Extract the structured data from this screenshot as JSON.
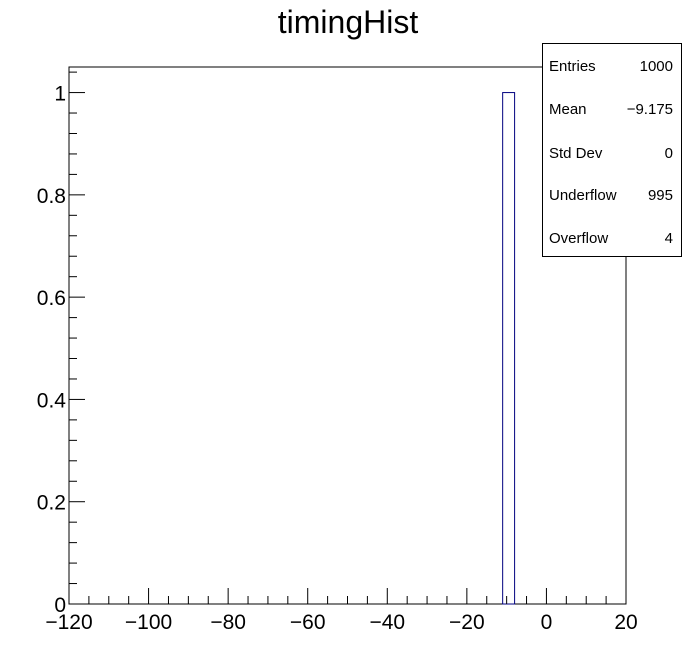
{
  "chart_data": {
    "type": "bar",
    "title": "timingHist",
    "xlabel": "",
    "ylabel": "",
    "xlim": [
      -120,
      20
    ],
    "ylim": [
      0,
      1.05
    ],
    "x_major_ticks": [
      -120,
      -100,
      -80,
      -60,
      -40,
      -20,
      0,
      20
    ],
    "x_tick_labels": [
      "−120",
      "−100",
      "−80",
      "−60",
      "−40",
      "−20",
      "0",
      "20"
    ],
    "y_major_ticks": [
      0,
      0.2,
      0.4,
      0.6,
      0.8,
      1
    ],
    "y_tick_labels": [
      "0",
      "0.2",
      "0.4",
      "0.6",
      "0.8",
      "1"
    ],
    "bins": [
      {
        "low": -11,
        "high": -8,
        "value": 1
      }
    ],
    "bar_fill": "#ffffff",
    "bar_stroke": "#000080",
    "grid": false,
    "legend": "none"
  },
  "stats": {
    "rows": [
      {
        "name": "Entries",
        "value": "1000"
      },
      {
        "name": "Mean",
        "value": "−9.175"
      },
      {
        "name": "Std Dev",
        "value": "0"
      },
      {
        "name": "Underflow",
        "value": "995"
      },
      {
        "name": "Overflow",
        "value": "4"
      }
    ]
  }
}
